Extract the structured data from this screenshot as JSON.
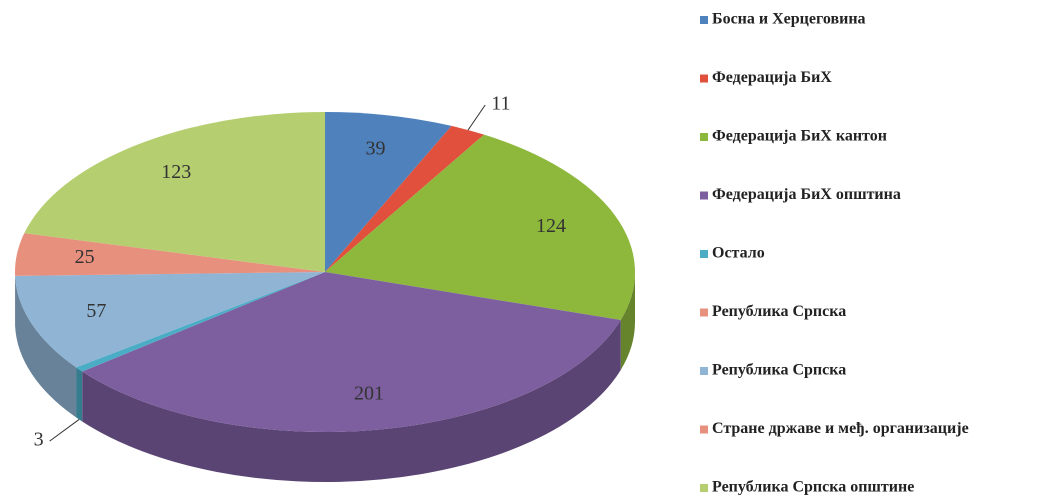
{
  "chart_data": {
    "type": "pie3d",
    "categories": [
      "Босна и Херцеговина",
      "Федерација БиХ",
      "Федерација БиХ кантон",
      "Федерација БиХ општина",
      "Остало",
      "Република Српска",
      "Република Српска",
      "Стране државе и међ. организације",
      "Република Српска општине"
    ],
    "values": [
      39,
      11,
      124,
      201,
      3,
      0,
      57,
      25,
      123
    ],
    "colors": [
      "#4f81bd",
      "#e0503c",
      "#8db83c",
      "#7d5fa0",
      "#4bacc6",
      "#e8907e",
      "#8fb4d4",
      "#e8907e",
      "#b5cf70"
    ],
    "legend": "right"
  }
}
